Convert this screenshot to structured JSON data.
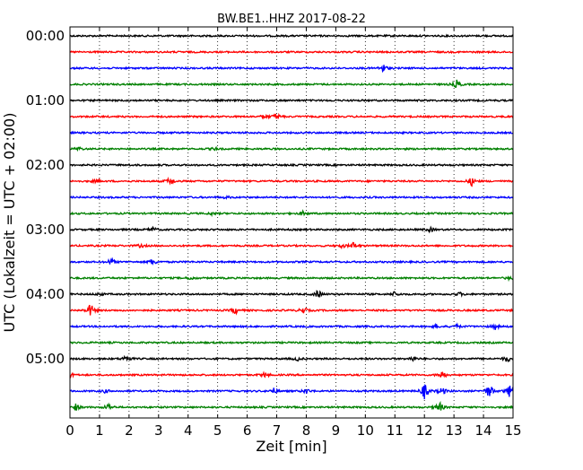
{
  "chart_data": {
    "type": "line",
    "title": "BW.BE1..HHZ 2017-08-22",
    "xlabel": "Zeit  [min]",
    "ylabel": "UTC (Lokalzeit = UTC + 02:00)",
    "xlim": [
      0,
      15
    ],
    "x_ticks": [
      "0",
      "1",
      "2",
      "3",
      "4",
      "5",
      "6",
      "7",
      "8",
      "9",
      "10",
      "11",
      "12",
      "13",
      "14",
      "15"
    ],
    "y_ticks": [
      "00:00",
      "01:00",
      "02:00",
      "03:00",
      "04:00",
      "05:00"
    ],
    "grid": "vertical dotted",
    "colors": [
      "#000000",
      "#ff0000",
      "#0000ff",
      "#008000"
    ],
    "series": [
      {
        "start": "00:00",
        "color": "#000000",
        "events": []
      },
      {
        "start": "00:15",
        "color": "#ff0000",
        "events": []
      },
      {
        "start": "00:30",
        "color": "#0000ff",
        "events": [
          [
            10.6,
            5
          ]
        ]
      },
      {
        "start": "00:45",
        "color": "#008000",
        "events": [
          [
            13.1,
            5
          ]
        ]
      },
      {
        "start": "01:00",
        "color": "#000000",
        "events": []
      },
      {
        "start": "01:15",
        "color": "#ff0000",
        "events": [
          [
            7.0,
            4
          ],
          [
            6.6,
            2
          ]
        ]
      },
      {
        "start": "01:30",
        "color": "#0000ff",
        "events": []
      },
      {
        "start": "01:45",
        "color": "#008000",
        "events": [
          [
            0.3,
            2
          ],
          [
            4.9,
            1.5
          ]
        ]
      },
      {
        "start": "02:00",
        "color": "#000000",
        "events": []
      },
      {
        "start": "02:15",
        "color": "#ff0000",
        "events": [
          [
            0.9,
            2
          ],
          [
            3.4,
            5
          ],
          [
            13.6,
            5
          ]
        ]
      },
      {
        "start": "02:30",
        "color": "#0000ff",
        "events": [
          [
            5.3,
            1.5
          ]
        ]
      },
      {
        "start": "02:45",
        "color": "#008000",
        "events": [
          [
            4.8,
            1.5
          ],
          [
            7.9,
            2.5
          ]
        ]
      },
      {
        "start": "03:00",
        "color": "#000000",
        "events": [
          [
            2.8,
            3
          ],
          [
            12.2,
            2.5
          ]
        ]
      },
      {
        "start": "03:15",
        "color": "#ff0000",
        "events": [
          [
            2.4,
            2
          ],
          [
            9.6,
            4
          ],
          [
            9.2,
            2
          ]
        ]
      },
      {
        "start": "03:30",
        "color": "#0000ff",
        "events": [
          [
            1.4,
            4
          ],
          [
            2.8,
            4
          ]
        ]
      },
      {
        "start": "03:45",
        "color": "#008000",
        "events": [
          [
            4.1,
            2
          ],
          [
            14.9,
            2
          ]
        ]
      },
      {
        "start": "04:00",
        "color": "#000000",
        "events": [
          [
            1.0,
            2
          ],
          [
            8.4,
            5
          ],
          [
            11.0,
            3
          ],
          [
            13.2,
            2
          ]
        ]
      },
      {
        "start": "04:15",
        "color": "#ff0000",
        "events": [
          [
            0.7,
            8
          ],
          [
            5.6,
            4
          ],
          [
            7.9,
            4
          ]
        ]
      },
      {
        "start": "04:30",
        "color": "#0000ff",
        "events": [
          [
            12.4,
            2
          ],
          [
            13.1,
            2
          ],
          [
            14.4,
            3
          ]
        ]
      },
      {
        "start": "04:45",
        "color": "#008000",
        "events": []
      },
      {
        "start": "05:00",
        "color": "#000000",
        "events": [
          [
            1.9,
            4
          ],
          [
            7.7,
            2
          ],
          [
            11.6,
            3
          ],
          [
            14.8,
            4
          ]
        ]
      },
      {
        "start": "05:15",
        "color": "#ff0000",
        "events": [
          [
            6.6,
            3
          ],
          [
            12.6,
            5
          ],
          [
            0.0,
            3
          ]
        ]
      },
      {
        "start": "05:30",
        "color": "#0000ff",
        "events": [
          [
            1.2,
            2
          ],
          [
            6.9,
            3
          ],
          [
            8.0,
            3
          ],
          [
            12.0,
            9
          ],
          [
            12.6,
            5
          ],
          [
            14.2,
            9
          ],
          [
            14.9,
            8
          ]
        ]
      },
      {
        "start": "05:45",
        "color": "#008000",
        "events": [
          [
            0.2,
            4
          ],
          [
            1.3,
            4
          ],
          [
            12.5,
            7
          ]
        ]
      }
    ]
  }
}
